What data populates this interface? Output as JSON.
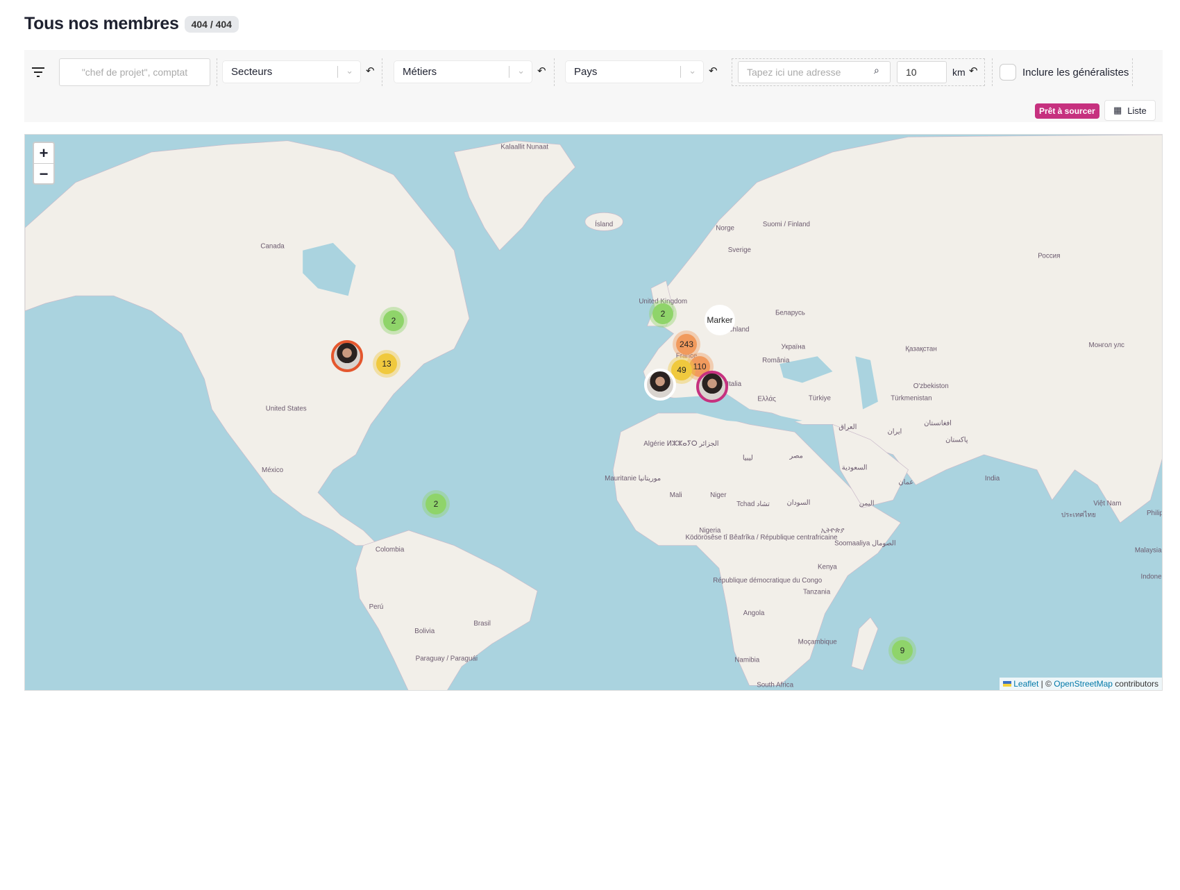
{
  "header": {
    "title": "Tous nos membres",
    "count_badge": "404 / 404"
  },
  "toolbar": {
    "search_placeholder": "\"chef de projet\", comptat",
    "secteurs": "Secteurs",
    "metiers": "Métiers",
    "pays": "Pays",
    "address_placeholder": "Tapez ici une adresse",
    "radius_value": "10",
    "radius_unit": "km",
    "include_generalists": "Inclure les généralistes",
    "include_generalists_checked": false,
    "ready_badge": "Prêt à sourcer",
    "list_button": "Liste"
  },
  "map": {
    "zoom_in": "+",
    "zoom_out": "−",
    "clusters": [
      {
        "count": "2",
        "level": "small"
      },
      {
        "count": "13",
        "level": "medium"
      },
      {
        "count": "2",
        "level": "small"
      },
      {
        "count": "2",
        "level": "small"
      },
      {
        "count": "243",
        "level": "large"
      },
      {
        "count": "110",
        "level": "large"
      },
      {
        "count": "49",
        "level": "medium"
      },
      {
        "count": "9",
        "level": "small"
      }
    ],
    "broken_marker_alt": "Marker",
    "labels": [
      "Kalaallit Nunaat",
      "Ísland",
      "Canada",
      "United States",
      "México",
      "Colombia",
      "Perú",
      "Brasil",
      "Bolivia",
      "Paraguay / Paraguái",
      "Norge",
      "Sverige",
      "Suomi / Finland",
      "Россия",
      "United Kingdom",
      "Deutschland",
      "Беларусь",
      "Україна",
      "România",
      "Қазақстан",
      "Монгол улс",
      "O'zbekiston",
      "Türkmenistan",
      "Türkiye",
      "Ελλάς",
      "Italia",
      "France",
      "Algérie ⵍⵣⵣⴰⵢⵔ الجزائر",
      "ليبيا",
      "مصر",
      "العراق",
      "ایران",
      "افغانستان",
      "پاکستان",
      "India",
      "السعودية",
      "عمان",
      "اليمن",
      "Mauritanie موريتانيا",
      "Mali",
      "Niger",
      "Tchad تشاد",
      "السودان",
      "Nigeria",
      "Ködörösêse tî Bêafrîka / République centrafricaine",
      "ኢትዮጵያ",
      "Soomaaliya الصومال",
      "Kenya",
      "République démocratique du Congo",
      "Tanzania",
      "Angola",
      "Moçambique",
      "Namibia",
      "South Africa",
      "Việt Nam",
      "ประเทศไทย",
      "Philip",
      "Malaysia",
      "Indone"
    ],
    "attribution": {
      "leaflet": "Leaflet",
      "sep": " | © ",
      "osm": "OpenStreetMap",
      "suffix": " contributors"
    }
  },
  "colors": {
    "accent": "#c6317f",
    "ocean": "#aad3df",
    "land": "#f2efe9",
    "cluster_small": "#8fd46a",
    "cluster_medium": "#f0c93e",
    "cluster_large": "#f19a5d"
  }
}
